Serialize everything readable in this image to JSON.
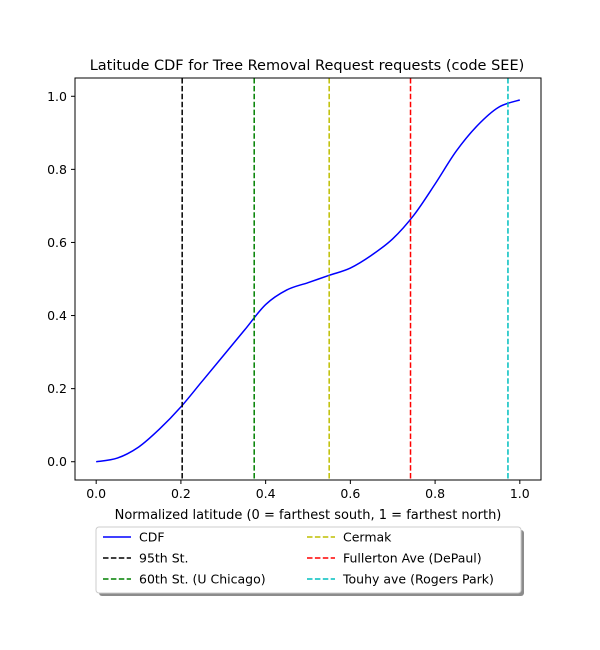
{
  "chart_data": {
    "type": "line",
    "title": "Latitude CDF for Tree Removal Request  requests (code SEE)",
    "xlabel": "Normalized latitude (0 = farthest south, 1 = farthest north)",
    "ylabel": "",
    "xlim": [
      -0.05,
      1.05
    ],
    "ylim": [
      -0.05,
      1.05
    ],
    "xticks": [
      0.0,
      0.2,
      0.4,
      0.6,
      0.8,
      1.0
    ],
    "xtick_labels": [
      "0.0",
      "0.2",
      "0.4",
      "0.6",
      "0.8",
      "1.0"
    ],
    "yticks": [
      0.0,
      0.2,
      0.4,
      0.6,
      0.8,
      1.0
    ],
    "ytick_labels": [
      "0.0",
      "0.2",
      "0.4",
      "0.6",
      "0.8",
      "1.0"
    ],
    "grid": false,
    "legend_placement": "below-center",
    "series": [
      {
        "name": "CDF",
        "color": "#0000ff",
        "x": [
          0.0,
          0.05,
          0.1,
          0.15,
          0.2,
          0.25,
          0.3,
          0.35,
          0.4,
          0.45,
          0.5,
          0.55,
          0.6,
          0.65,
          0.7,
          0.75,
          0.8,
          0.85,
          0.9,
          0.95,
          1.0
        ],
        "y": [
          0.0,
          0.01,
          0.04,
          0.09,
          0.15,
          0.22,
          0.29,
          0.36,
          0.43,
          0.47,
          0.49,
          0.51,
          0.53,
          0.565,
          0.61,
          0.675,
          0.76,
          0.85,
          0.92,
          0.97,
          0.99
        ]
      }
    ],
    "vlines": [
      {
        "name": "95th St.",
        "x": 0.203,
        "color": "#000000"
      },
      {
        "name": "60th St. (U Chicago)",
        "x": 0.373,
        "color": "#008000"
      },
      {
        "name": "Cermak",
        "x": 0.55,
        "color": "#bfbf00"
      },
      {
        "name": "Fullerton Ave (DePaul)",
        "x": 0.742,
        "color": "#ff0000"
      },
      {
        "name": "Touhy ave (Rogers Park)",
        "x": 0.972,
        "color": "#00bfbf"
      }
    ]
  }
}
